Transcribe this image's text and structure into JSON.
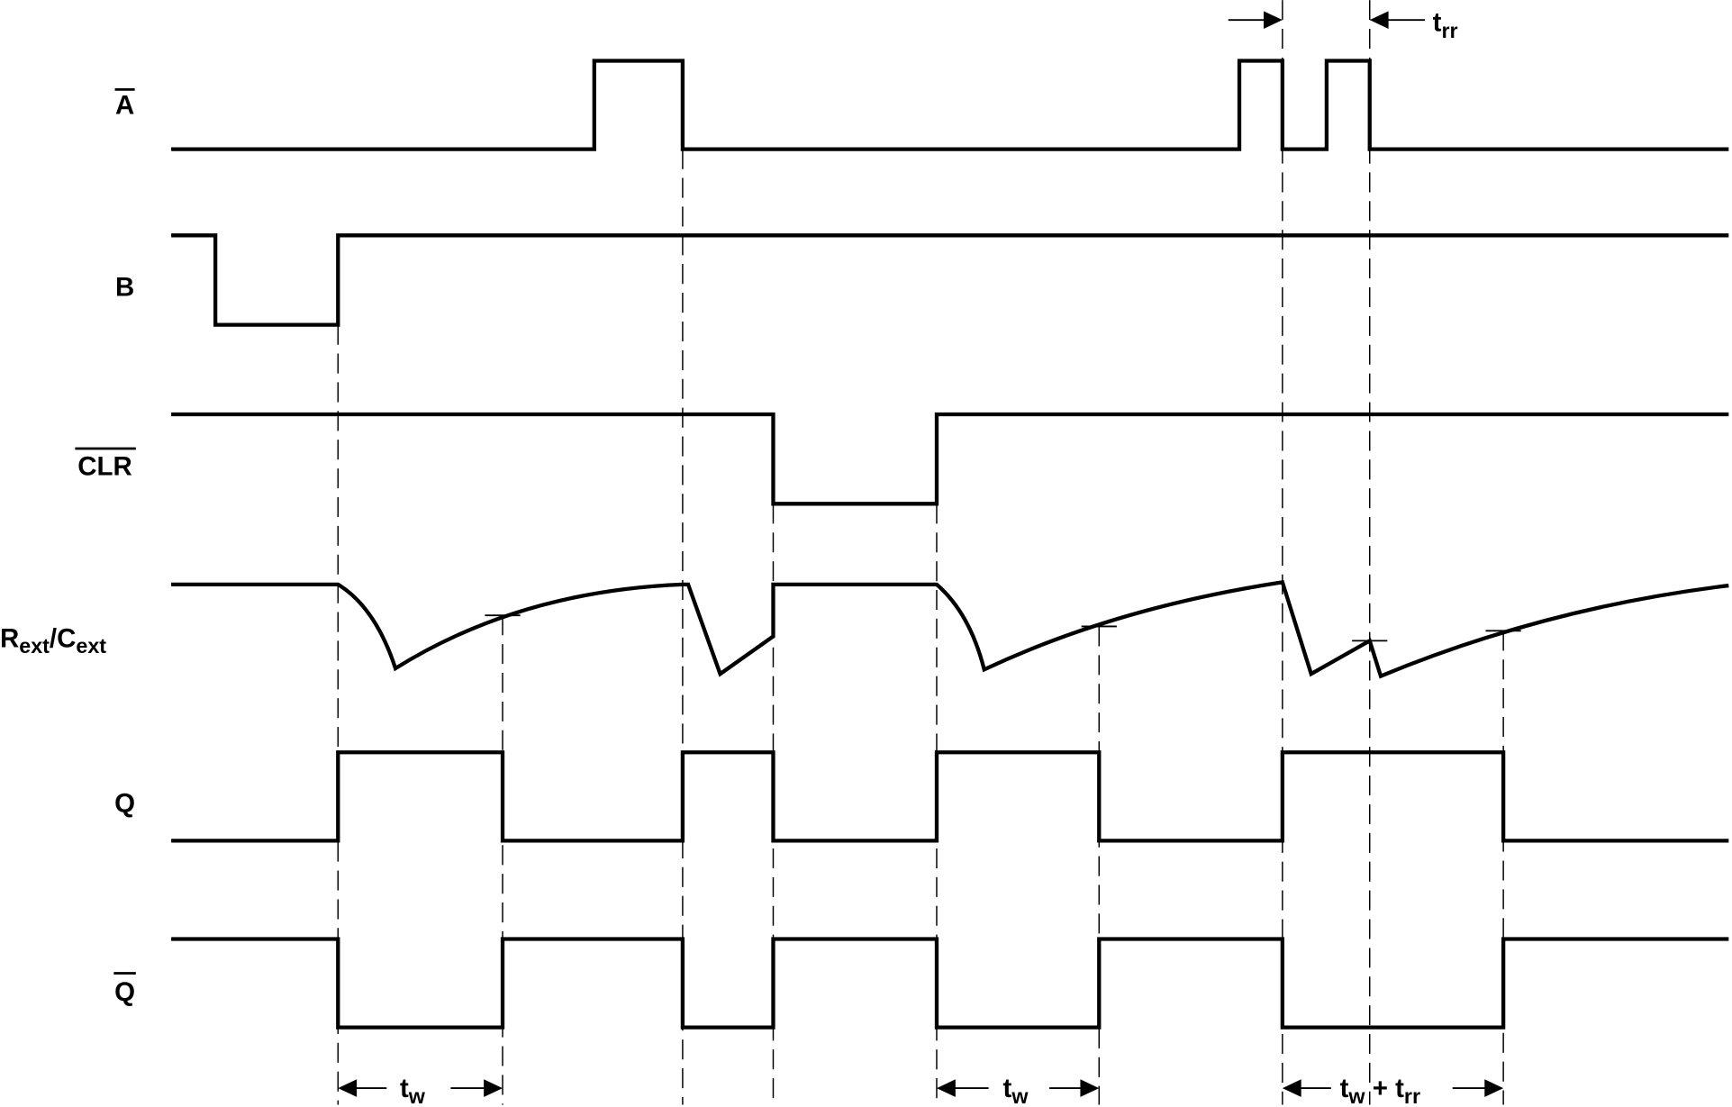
{
  "signals": {
    "a_bar": "A",
    "b": "B",
    "clr_bar": "CLR",
    "rext_main": "R",
    "rext_sub": "ext",
    "rext_sep": "/C",
    "cext_sub": "ext",
    "q": "Q",
    "q_bar": "Q"
  },
  "annotations": {
    "tw_main": "t",
    "tw_sub": "w",
    "trr_main": "t",
    "trr_sub": "rr",
    "plus": " + "
  }
}
